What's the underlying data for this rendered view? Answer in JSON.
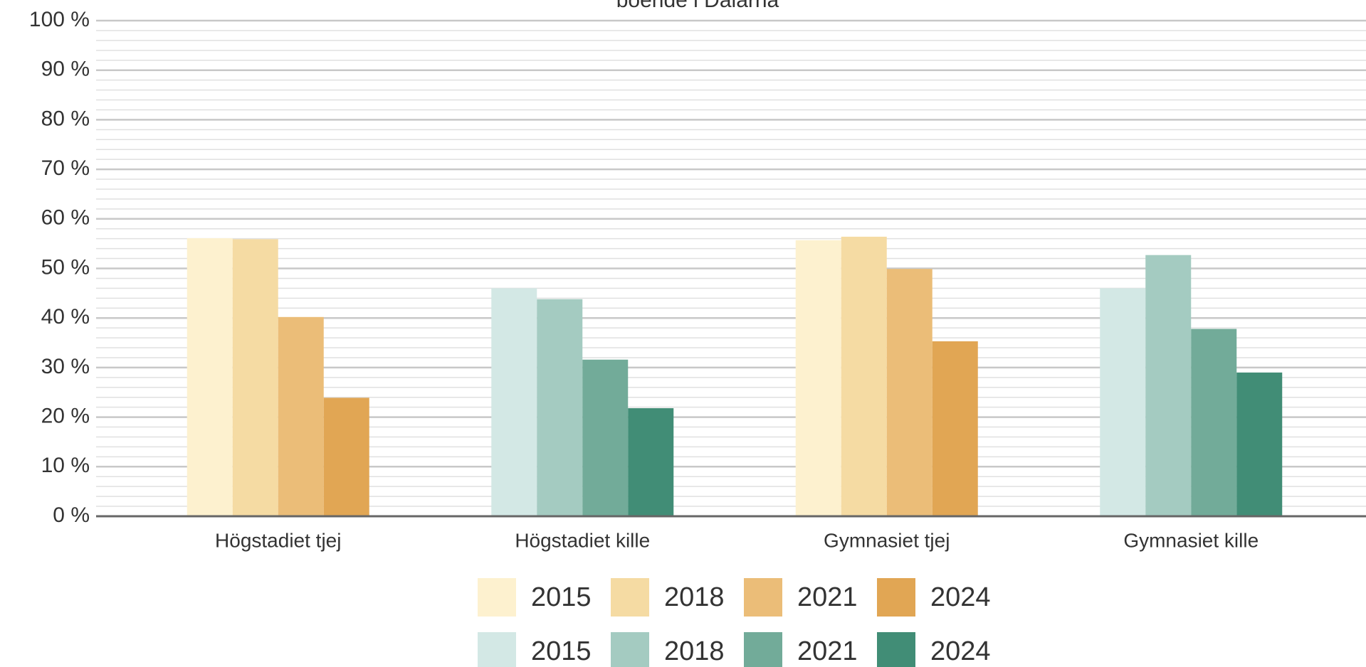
{
  "chart_data": {
    "type": "bar",
    "title": "boende i Dalarna",
    "categories": [
      "Högstadiet tjej",
      "Högstadiet kille",
      "Gymnasiet tjej",
      "Gymnasiet kille"
    ],
    "series": [
      {
        "name": "2015",
        "color": "#fdf1cf",
        "values": [
          56.1,
          null,
          55.7,
          null
        ]
      },
      {
        "name": "2018",
        "color": "#f5dba3",
        "values": [
          55.9,
          null,
          56.4,
          null
        ]
      },
      {
        "name": "2021",
        "color": "#ebbd78",
        "values": [
          40.2,
          null,
          49.9,
          null
        ]
      },
      {
        "name": "2024",
        "color": "#e1a654",
        "values": [
          23.9,
          null,
          35.3,
          null
        ]
      },
      {
        "name": "2015",
        "color": "#d3e8e5",
        "values": [
          null,
          46,
          null,
          46
        ]
      },
      {
        "name": "2018",
        "color": "#a4cbc1",
        "values": [
          null,
          43.8,
          null,
          52.7
        ]
      },
      {
        "name": "2021",
        "color": "#72ab99",
        "values": [
          null,
          31.6,
          null,
          37.8
        ]
      },
      {
        "name": "2024",
        "color": "#418d76",
        "values": [
          null,
          21.8,
          null,
          29
        ]
      }
    ],
    "ylim": [
      0,
      100
    ],
    "yticks": [
      {
        "value": 0,
        "label": "0 %"
      },
      {
        "value": 10,
        "label": "10 %"
      },
      {
        "value": 20,
        "label": "20 %"
      },
      {
        "value": 30,
        "label": "30 %"
      },
      {
        "value": 40,
        "label": "40 %"
      },
      {
        "value": 50,
        "label": "50 %"
      },
      {
        "value": 60,
        "label": "60 %"
      },
      {
        "value": 70,
        "label": "70 %"
      },
      {
        "value": 80,
        "label": "80 %"
      },
      {
        "value": 90,
        "label": "90 %"
      },
      {
        "value": 100,
        "label": "100 %"
      }
    ],
    "minor_yticks": [
      2,
      4,
      6,
      8,
      12,
      14,
      16,
      18,
      22,
      24,
      26,
      28,
      32,
      34,
      36,
      38,
      42,
      44,
      46,
      48,
      52,
      54,
      56,
      58,
      62,
      64,
      66,
      68,
      72,
      74,
      76,
      78,
      82,
      84,
      86,
      88,
      92,
      94,
      96,
      98
    ],
    "grid": true
  }
}
